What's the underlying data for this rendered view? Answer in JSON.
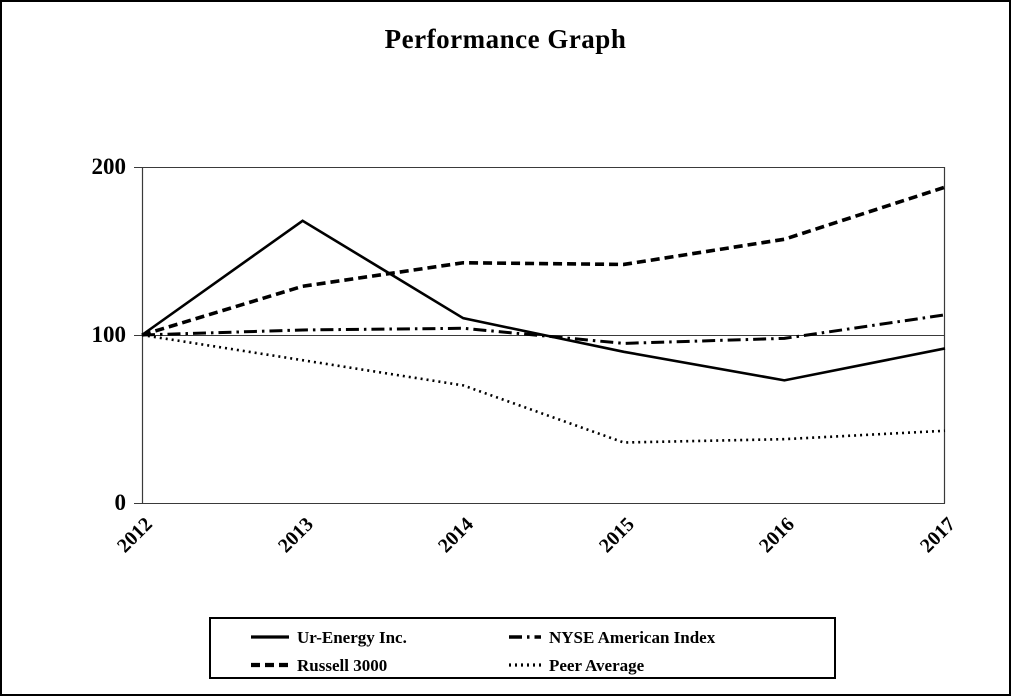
{
  "page": {
    "background_color": "#ffffff",
    "border_color": "#000000",
    "text_color": "#000000"
  },
  "chart_data": {
    "type": "line",
    "title": "Performance Graph",
    "xlabel": "",
    "ylabel": "",
    "x": [
      "2012",
      "2013",
      "2014",
      "2015",
      "2016",
      "2017"
    ],
    "y_ticks": [
      "200",
      "100",
      "0"
    ],
    "y_tick_values": [
      200,
      100,
      0
    ],
    "ylim": [
      0,
      200
    ],
    "baseline_value": 100,
    "grid": "horizontal lines at 0, 100, 200",
    "line_color": "#000000",
    "legend_position": "bottom-box",
    "series": [
      {
        "name": "Ur-Energy Inc.",
        "line_style": "solid",
        "values": [
          100,
          168,
          110,
          90,
          73,
          92
        ]
      },
      {
        "name": "NYSE American Index",
        "line_style": "dash-dot",
        "values": [
          100,
          103,
          104,
          95,
          98,
          112
        ]
      },
      {
        "name": "Russell 3000",
        "line_style": "dashed",
        "values": [
          100,
          129,
          143,
          142,
          157,
          188
        ]
      },
      {
        "name": "Peer Average",
        "line_style": "dotted",
        "values": [
          100,
          85,
          70,
          36,
          38,
          43
        ]
      }
    ]
  }
}
